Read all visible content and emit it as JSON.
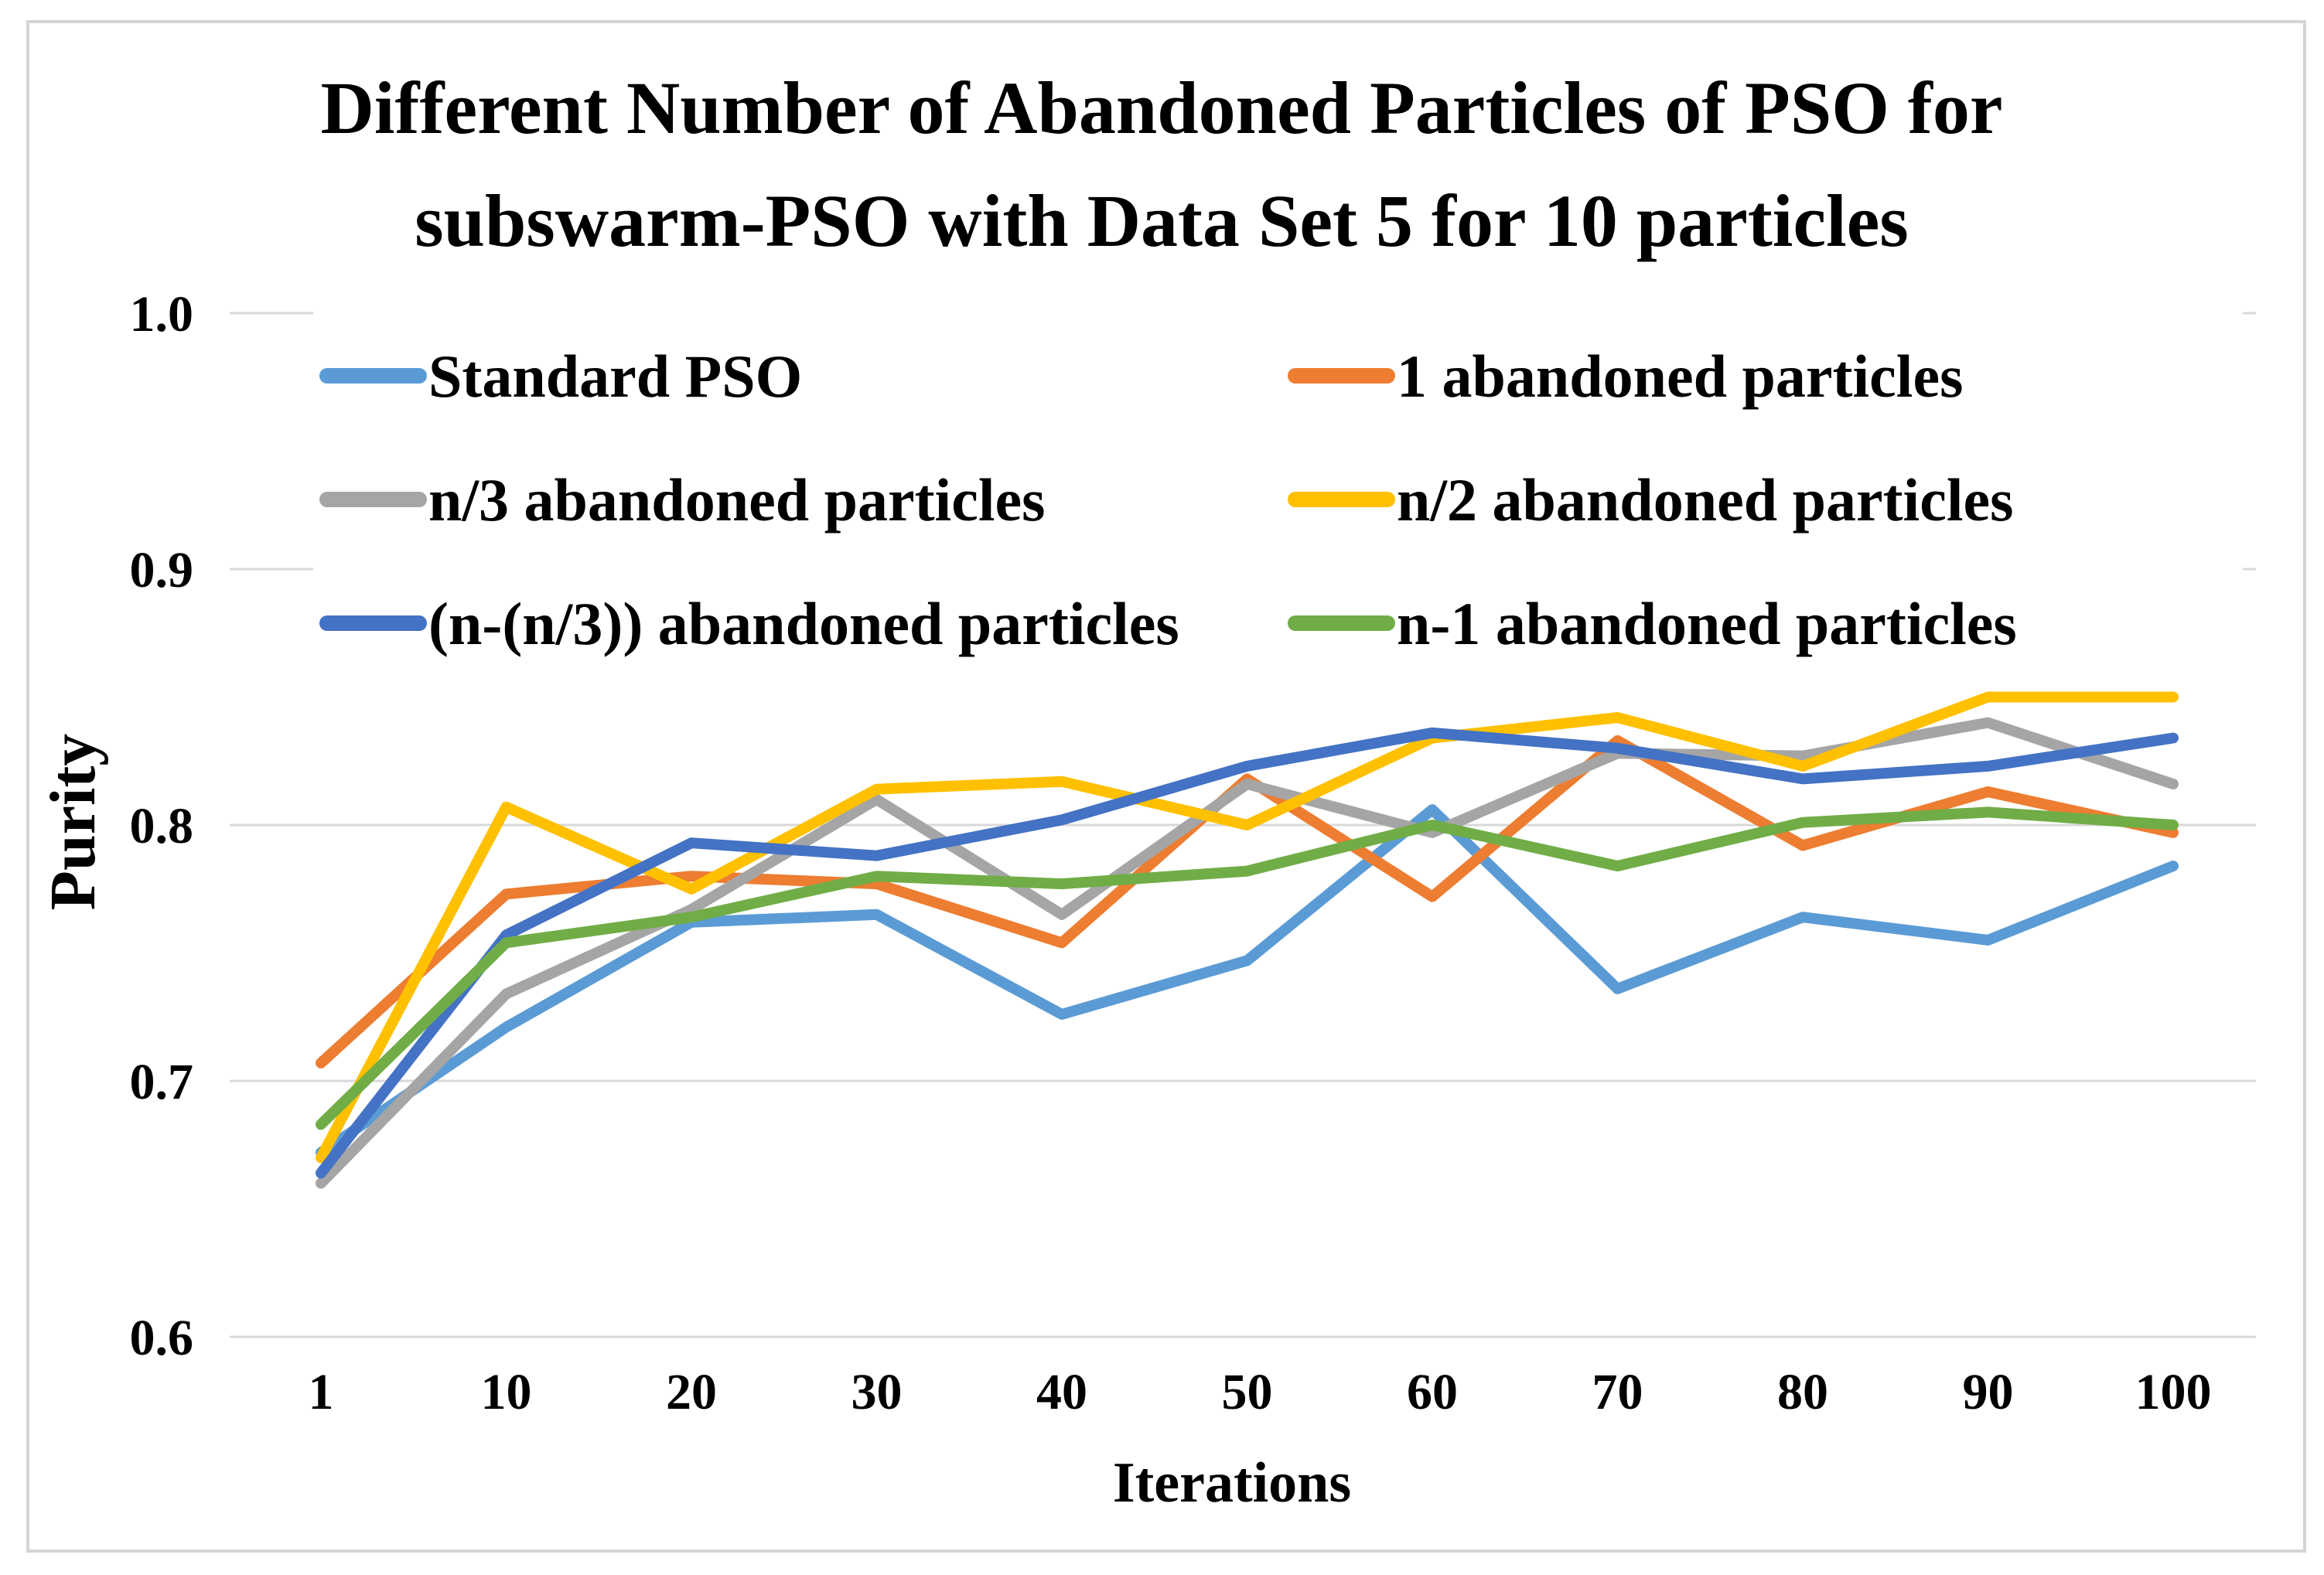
{
  "figure": {
    "title_line1": "Different Number of Abandoned Particles of PSO for",
    "title_line2": "subswarm-PSO with Data Set 5 for 10 particles"
  },
  "chart_data": {
    "type": "line",
    "title": "Different Number of Abandoned Particles of PSO for subswarm-PSO with Data Set 5 for 10 particles",
    "xlabel": "Iterations",
    "ylabel": "Purity",
    "ylim": [
      0.6,
      1.0
    ],
    "grid": true,
    "legend_position": "top-inside-two-columns",
    "x_tick_labels": [
      "1",
      "10",
      "20",
      "30",
      "40",
      "50",
      "60",
      "70",
      "80",
      "90",
      "100"
    ],
    "y_tick_labels": [
      "1.0",
      "0.9",
      "0.8",
      "0.7",
      "0.6"
    ],
    "y_tick_values": [
      1.0,
      0.9,
      0.8,
      0.7,
      0.6
    ],
    "categories": [
      1,
      10,
      20,
      30,
      40,
      50,
      60,
      70,
      80,
      90,
      100
    ],
    "series": [
      {
        "name": "Standard PSO",
        "color": "#5B9BD5",
        "values": [
          0.672,
          0.721,
          0.762,
          0.765,
          0.726,
          0.747,
          0.806,
          0.736,
          0.764,
          0.755,
          0.784
        ]
      },
      {
        "name": "1 abandoned particles",
        "color": "#ED7D31",
        "values": [
          0.707,
          0.773,
          0.78,
          0.777,
          0.754,
          0.818,
          0.772,
          0.833,
          0.792,
          0.813,
          0.797
        ]
      },
      {
        "name": "n/3 abandoned particles",
        "color": "#A5A5A5",
        "values": [
          0.66,
          0.734,
          0.767,
          0.81,
          0.765,
          0.816,
          0.797,
          0.828,
          0.827,
          0.84,
          0.816
        ]
      },
      {
        "name": "n/2 abandoned particles",
        "color": "#FFC000",
        "values": [
          0.67,
          0.807,
          0.775,
          0.814,
          0.817,
          0.8,
          0.834,
          0.842,
          0.823,
          0.85,
          0.85
        ]
      },
      {
        "name": "(n-(n/3)) abandoned particles",
        "color": "#4472C4",
        "values": [
          0.664,
          0.757,
          0.793,
          0.788,
          0.802,
          0.823,
          0.836,
          0.83,
          0.818,
          0.823,
          0.834
        ]
      },
      {
        "name": "n-1 abandoned particles",
        "color": "#70AD47",
        "values": [
          0.683,
          0.754,
          0.764,
          0.78,
          0.777,
          0.782,
          0.8,
          0.784,
          0.801,
          0.805,
          0.8
        ]
      }
    ]
  },
  "colors": {
    "background": "#FFFFFF",
    "gridline": "#D9D9D9",
    "figure_border": "#D5D5D5",
    "text": "#000000"
  }
}
